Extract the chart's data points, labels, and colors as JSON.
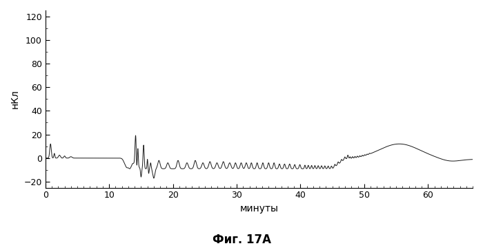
{
  "title": "Фиг. 17А",
  "xlabel": "минуты",
  "ylabel": "нКл",
  "xlim": [
    0,
    67
  ],
  "ylim": [
    -25,
    125
  ],
  "yticks": [
    -20,
    0,
    20,
    40,
    60,
    80,
    100,
    120
  ],
  "xticks": [
    0,
    10,
    20,
    30,
    40,
    50,
    60
  ],
  "line_color": "#1a1a1a",
  "bg_color": "#ffffff"
}
